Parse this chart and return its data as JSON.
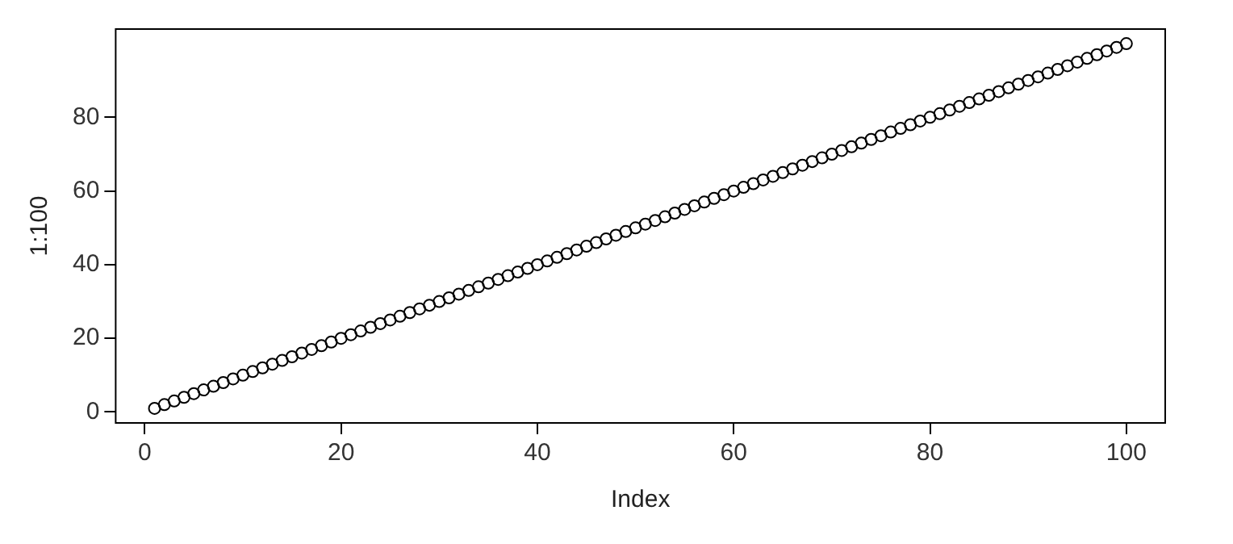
{
  "chart_data": {
    "type": "scatter",
    "xlabel": "Index",
    "ylabel": "1:100",
    "x": [
      1,
      2,
      3,
      4,
      5,
      6,
      7,
      8,
      9,
      10,
      11,
      12,
      13,
      14,
      15,
      16,
      17,
      18,
      19,
      20,
      21,
      22,
      23,
      24,
      25,
      26,
      27,
      28,
      29,
      30,
      31,
      32,
      33,
      34,
      35,
      36,
      37,
      38,
      39,
      40,
      41,
      42,
      43,
      44,
      45,
      46,
      47,
      48,
      49,
      50,
      51,
      52,
      53,
      54,
      55,
      56,
      57,
      58,
      59,
      60,
      61,
      62,
      63,
      64,
      65,
      66,
      67,
      68,
      69,
      70,
      71,
      72,
      73,
      74,
      75,
      76,
      77,
      78,
      79,
      80,
      81,
      82,
      83,
      84,
      85,
      86,
      87,
      88,
      89,
      90,
      91,
      92,
      93,
      94,
      95,
      96,
      97,
      98,
      99,
      100
    ],
    "values": [
      1,
      2,
      3,
      4,
      5,
      6,
      7,
      8,
      9,
      10,
      11,
      12,
      13,
      14,
      15,
      16,
      17,
      18,
      19,
      20,
      21,
      22,
      23,
      24,
      25,
      26,
      27,
      28,
      29,
      30,
      31,
      32,
      33,
      34,
      35,
      36,
      37,
      38,
      39,
      40,
      41,
      42,
      43,
      44,
      45,
      46,
      47,
      48,
      49,
      50,
      51,
      52,
      53,
      54,
      55,
      56,
      57,
      58,
      59,
      60,
      61,
      62,
      63,
      64,
      65,
      66,
      67,
      68,
      69,
      70,
      71,
      72,
      73,
      74,
      75,
      76,
      77,
      78,
      79,
      80,
      81,
      82,
      83,
      84,
      85,
      86,
      87,
      88,
      89,
      90,
      91,
      92,
      93,
      94,
      95,
      96,
      97,
      98,
      99,
      100
    ],
    "color": "#000000",
    "marker": "circle",
    "xlim": [
      -2.96,
      103.96
    ],
    "ylim": [
      -2.96,
      103.96
    ],
    "xticks": [
      0,
      20,
      40,
      60,
      80,
      100
    ],
    "yticks": [
      0,
      20,
      40,
      60,
      80
    ],
    "grid": false,
    "legend": false
  }
}
